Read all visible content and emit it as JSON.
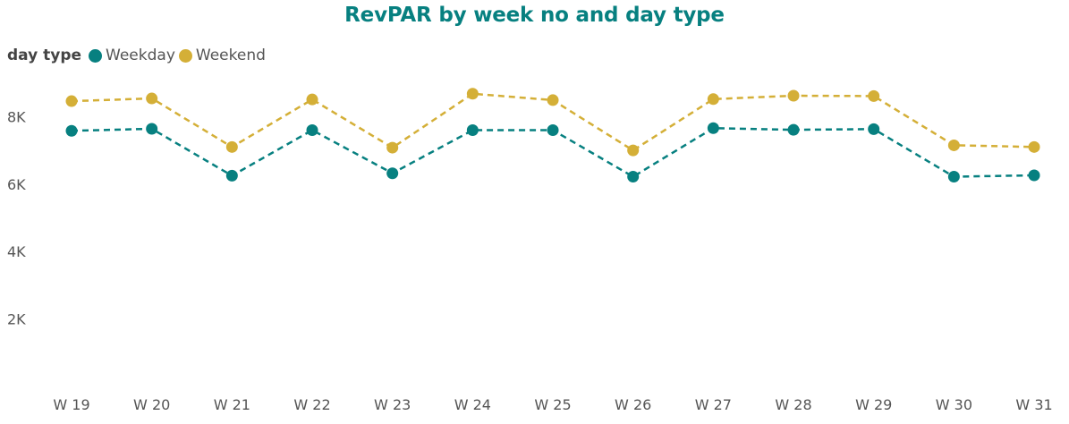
{
  "chart_data": {
    "type": "line",
    "title": "RevPAR by week no and day type",
    "legend_title": "day type",
    "legend_position": "top-left",
    "categories": [
      "W 19",
      "W 20",
      "W 21",
      "W 22",
      "W 23",
      "W 24",
      "W 25",
      "W 26",
      "W 27",
      "W 28",
      "W 29",
      "W 30",
      "W 31"
    ],
    "y_ticks": [
      {
        "value": 2000,
        "label": "2K"
      },
      {
        "value": 4000,
        "label": "4K"
      },
      {
        "value": 6000,
        "label": "6K"
      },
      {
        "value": 8000,
        "label": "8K"
      }
    ],
    "ylim": [
      0,
      9300
    ],
    "grid": false,
    "line_style": "dashed",
    "series": [
      {
        "name": "Weekday",
        "color": "#078080",
        "values": [
          7580,
          7640,
          6250,
          7600,
          6320,
          7600,
          7600,
          6220,
          7660,
          7610,
          7630,
          6220,
          6260
        ]
      },
      {
        "name": "Weekend",
        "color": "#D4AF37",
        "values": [
          8460,
          8540,
          7100,
          8510,
          7080,
          8680,
          8490,
          7000,
          8520,
          8620,
          8610,
          7150,
          7100
        ]
      }
    ]
  }
}
